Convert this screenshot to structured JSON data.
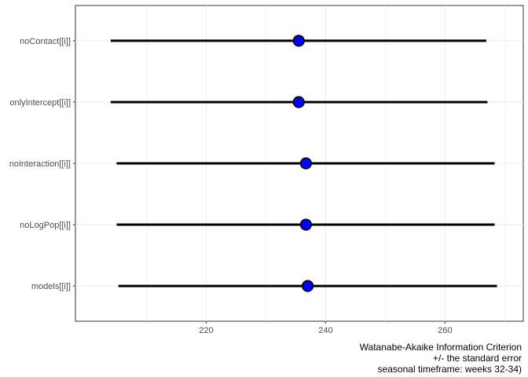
{
  "chart_data": {
    "type": "dot-errorbar",
    "categories": [
      "noContact[[i]]",
      "onlyIntercept[[i]]",
      "noInteraction[[i]]",
      "noLogPop[[i]]",
      "models[[i]]"
    ],
    "series": [
      {
        "values": [
          235.5,
          235.5,
          236.7,
          236.7,
          237.0
        ],
        "lower": [
          204.0,
          204.0,
          205.0,
          205.0,
          205.3
        ],
        "upper": [
          266.9,
          267.1,
          268.3,
          268.3,
          268.7
        ]
      }
    ],
    "xticks": [
      220,
      240,
      260
    ],
    "xlim": [
      198.1,
      273.1
    ],
    "xlabel_lines": [
      "Watanabe-Akaike Information Criterion",
      "+/- the standard error",
      "seasonal timeframe: weeks 32-34)"
    ],
    "grid": true,
    "point_color": "#0000ff",
    "line_color": "#000000"
  }
}
